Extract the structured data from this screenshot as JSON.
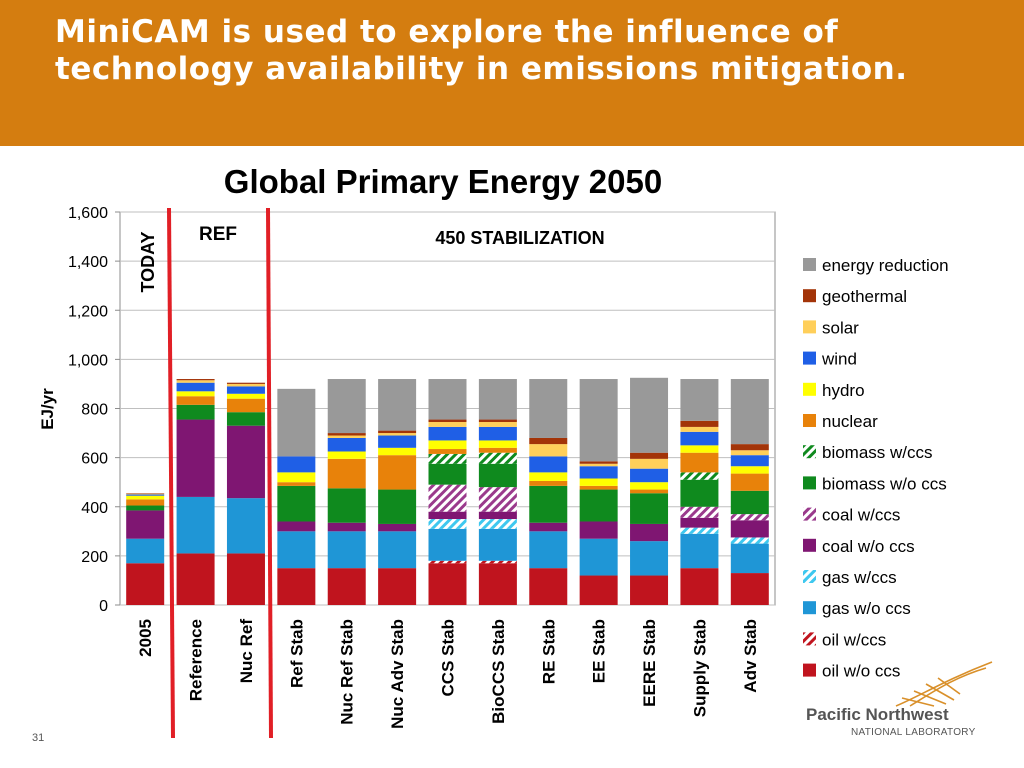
{
  "header": {
    "title": "MiniCAM is used to explore the influence of technology availability in emissions mitigation."
  },
  "footer": {
    "page_number": "31",
    "logo_name": "Pacific Northwest",
    "logo_sub": "NATIONAL LABORATORY"
  },
  "chart_data": {
    "type": "bar",
    "stacked": true,
    "title": "Global Primary Energy 2050",
    "ylabel": "EJ/yr",
    "xlabel": "",
    "ylim": [
      0,
      1600
    ],
    "yticks": [
      "0",
      "200",
      "400",
      "600",
      "800",
      "1,000",
      "1,200",
      "1,400",
      "1,600"
    ],
    "grid": true,
    "legend_position": "right",
    "categories": [
      "2005",
      "Reference",
      "Nuc Ref",
      "Ref Stab",
      "Nuc Ref Stab",
      "Nuc Adv Stab",
      "CCS Stab",
      "BioCCS Stab",
      "RE Stab",
      "EE Stab",
      "EERE Stab",
      "Supply Stab",
      "Adv Stab"
    ],
    "annotations": [
      "TODAY",
      "REF",
      "450 STABILIZATION"
    ],
    "series": [
      {
        "name": "oil w/o ccs",
        "color": "#c0141e",
        "pattern": "solid",
        "values": [
          170,
          210,
          210,
          150,
          150,
          150,
          170,
          170,
          150,
          120,
          120,
          150,
          130
        ]
      },
      {
        "name": "oil w/ccs",
        "color": "#c0141e",
        "pattern": "hatch",
        "values": [
          0,
          0,
          0,
          0,
          0,
          0,
          10,
          10,
          0,
          0,
          0,
          0,
          0
        ]
      },
      {
        "name": "gas w/o ccs",
        "color": "#1f96d6",
        "pattern": "solid",
        "values": [
          100,
          230,
          225,
          150,
          150,
          150,
          130,
          130,
          150,
          150,
          140,
          140,
          120
        ]
      },
      {
        "name": "gas w/ccs",
        "color": "#3ec8ef",
        "pattern": "hatch",
        "values": [
          0,
          0,
          0,
          0,
          0,
          0,
          40,
          40,
          0,
          0,
          0,
          25,
          25
        ]
      },
      {
        "name": "coal w/o ccs",
        "color": "#7f1672",
        "pattern": "solid",
        "values": [
          115,
          315,
          295,
          40,
          35,
          30,
          30,
          30,
          35,
          70,
          70,
          40,
          70
        ]
      },
      {
        "name": "coal w/ccs",
        "color": "#9a3a8c",
        "pattern": "hatch",
        "values": [
          0,
          0,
          0,
          0,
          0,
          0,
          110,
          100,
          0,
          0,
          0,
          45,
          25
        ]
      },
      {
        "name": "biomass w/o ccs",
        "color": "#0f8a1e",
        "pattern": "solid",
        "values": [
          20,
          60,
          55,
          145,
          140,
          140,
          85,
          95,
          150,
          130,
          125,
          110,
          95
        ]
      },
      {
        "name": "biomass w/ccs",
        "color": "#0f8a1e",
        "pattern": "hatch",
        "values": [
          0,
          0,
          0,
          0,
          0,
          0,
          40,
          45,
          0,
          0,
          0,
          30,
          0
        ]
      },
      {
        "name": "nuclear",
        "color": "#e8820a",
        "pattern": "solid",
        "values": [
          25,
          35,
          55,
          15,
          120,
          140,
          20,
          20,
          20,
          15,
          15,
          80,
          70
        ]
      },
      {
        "name": "hydro",
        "color": "#ffff00",
        "pattern": "solid",
        "values": [
          15,
          20,
          20,
          40,
          30,
          30,
          35,
          30,
          35,
          30,
          30,
          30,
          30
        ]
      },
      {
        "name": "wind",
        "color": "#1f5fe6",
        "pattern": "solid",
        "values": [
          5,
          35,
          30,
          65,
          55,
          50,
          55,
          55,
          65,
          50,
          55,
          55,
          45
        ]
      },
      {
        "name": "solar",
        "color": "#ffcf5a",
        "pattern": "solid",
        "values": [
          3,
          10,
          10,
          0,
          10,
          10,
          20,
          20,
          50,
          10,
          40,
          20,
          20
        ]
      },
      {
        "name": "geothermal",
        "color": "#a33408",
        "pattern": "solid",
        "values": [
          2,
          5,
          5,
          0,
          10,
          10,
          10,
          10,
          25,
          10,
          25,
          25,
          25
        ]
      },
      {
        "name": "energy reduction",
        "color": "#999999",
        "pattern": "solid",
        "values": [
          0,
          0,
          0,
          275,
          220,
          210,
          165,
          165,
          240,
          335,
          305,
          170,
          265
        ]
      }
    ]
  }
}
